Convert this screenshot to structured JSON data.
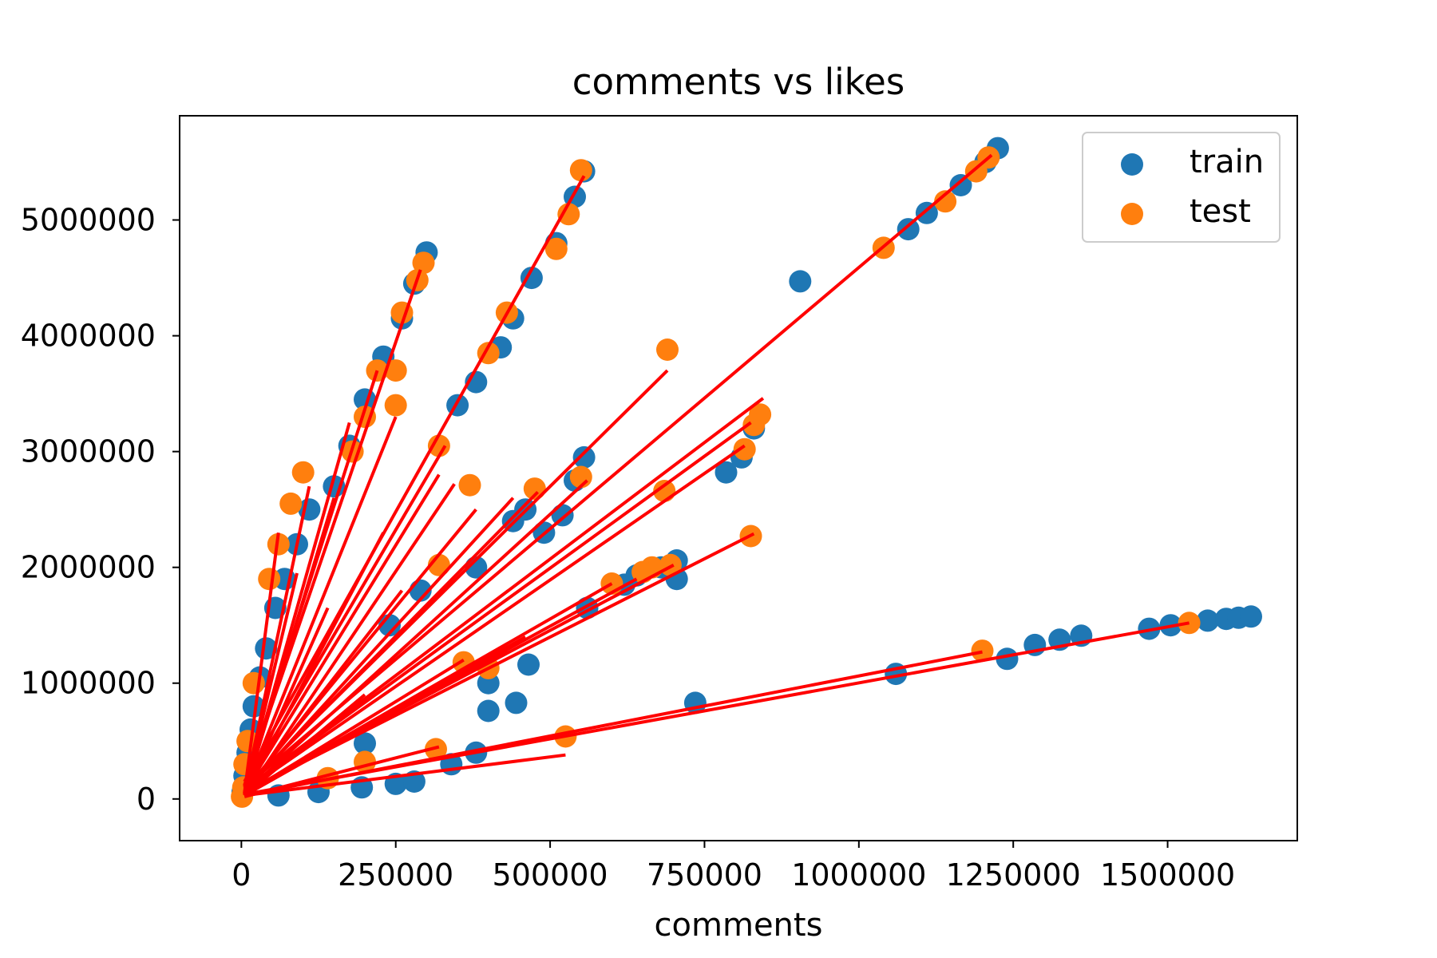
{
  "chart_data": {
    "type": "scatter",
    "title": "comments vs likes",
    "xlabel": "comments",
    "ylabel": "",
    "xlim": [
      -100000,
      1710000
    ],
    "ylim": [
      -360000,
      5900000
    ],
    "grid": false,
    "legend_position": "top-right",
    "x_ticks": [
      0,
      250000,
      500000,
      750000,
      1000000,
      1250000,
      1500000
    ],
    "x_tick_labels": [
      "0",
      "250000",
      "500000",
      "750000",
      "1000000",
      "1250000",
      "1500000"
    ],
    "y_ticks": [
      0,
      1000000,
      2000000,
      3000000,
      4000000,
      5000000
    ],
    "y_tick_labels": [
      "0",
      "1000000",
      "2000000",
      "3000000",
      "4000000",
      "5000000"
    ],
    "colors": {
      "train": "#1f77b4",
      "test": "#ff7f0e",
      "fit_lines": "#ff0000"
    },
    "series": [
      {
        "name": "train",
        "color": "#1f77b4",
        "points": [
          [
            1225000,
            5620000
          ],
          [
            1205000,
            5500000
          ],
          [
            1165000,
            5300000
          ],
          [
            1110000,
            5060000
          ],
          [
            1080000,
            4920000
          ],
          [
            905000,
            4470000
          ],
          [
            300000,
            4720000
          ],
          [
            280000,
            4450000
          ],
          [
            260000,
            4150000
          ],
          [
            230000,
            3820000
          ],
          [
            200000,
            3450000
          ],
          [
            175000,
            3050000
          ],
          [
            150000,
            2700000
          ],
          [
            110000,
            2500000
          ],
          [
            90000,
            2200000
          ],
          [
            70000,
            1900000
          ],
          [
            55000,
            1650000
          ],
          [
            40000,
            1300000
          ],
          [
            30000,
            1050000
          ],
          [
            20000,
            800000
          ],
          [
            15000,
            600000
          ],
          [
            10000,
            400000
          ],
          [
            5000,
            200000
          ],
          [
            2000,
            60000
          ],
          [
            555000,
            5420000
          ],
          [
            540000,
            5200000
          ],
          [
            510000,
            4800000
          ],
          [
            470000,
            4500000
          ],
          [
            440000,
            4150000
          ],
          [
            420000,
            3900000
          ],
          [
            380000,
            3600000
          ],
          [
            350000,
            3400000
          ],
          [
            555000,
            2950000
          ],
          [
            540000,
            2750000
          ],
          [
            440000,
            2400000
          ],
          [
            460000,
            2500000
          ],
          [
            490000,
            2300000
          ],
          [
            520000,
            2450000
          ],
          [
            620000,
            1850000
          ],
          [
            640000,
            1930000
          ],
          [
            680000,
            2000000
          ],
          [
            705000,
            2060000
          ],
          [
            705000,
            1900000
          ],
          [
            560000,
            1650000
          ],
          [
            380000,
            2000000
          ],
          [
            290000,
            1800000
          ],
          [
            240000,
            1500000
          ],
          [
            465000,
            1160000
          ],
          [
            400000,
            1000000
          ],
          [
            400000,
            760000
          ],
          [
            445000,
            830000
          ],
          [
            735000,
            830000
          ],
          [
            785000,
            2820000
          ],
          [
            810000,
            2950000
          ],
          [
            830000,
            3200000
          ],
          [
            1060000,
            1080000
          ],
          [
            1240000,
            1210000
          ],
          [
            1285000,
            1330000
          ],
          [
            1325000,
            1375000
          ],
          [
            1360000,
            1410000
          ],
          [
            1470000,
            1470000
          ],
          [
            1505000,
            1500000
          ],
          [
            1565000,
            1540000
          ],
          [
            1595000,
            1555000
          ],
          [
            1615000,
            1565000
          ],
          [
            1635000,
            1575000
          ],
          [
            380000,
            400000
          ],
          [
            340000,
            300000
          ],
          [
            250000,
            130000
          ],
          [
            280000,
            150000
          ],
          [
            195000,
            100000
          ],
          [
            200000,
            480000
          ],
          [
            125000,
            60000
          ],
          [
            60000,
            30000
          ]
        ]
      },
      {
        "name": "test",
        "color": "#ff7f0e",
        "points": [
          [
            1210000,
            5540000
          ],
          [
            1190000,
            5420000
          ],
          [
            1140000,
            5160000
          ],
          [
            1040000,
            4760000
          ],
          [
            690000,
            3880000
          ],
          [
            840000,
            3320000
          ],
          [
            830000,
            3230000
          ],
          [
            815000,
            3020000
          ],
          [
            825000,
            2270000
          ],
          [
            685000,
            2660000
          ],
          [
            695000,
            2020000
          ],
          [
            665000,
            2000000
          ],
          [
            650000,
            1960000
          ],
          [
            600000,
            1860000
          ],
          [
            550000,
            2780000
          ],
          [
            475000,
            2680000
          ],
          [
            370000,
            2710000
          ],
          [
            320000,
            3050000
          ],
          [
            550000,
            5430000
          ],
          [
            530000,
            5050000
          ],
          [
            510000,
            4750000
          ],
          [
            430000,
            4200000
          ],
          [
            400000,
            3850000
          ],
          [
            295000,
            4630000
          ],
          [
            285000,
            4480000
          ],
          [
            260000,
            4200000
          ],
          [
            250000,
            3700000
          ],
          [
            220000,
            3700000
          ],
          [
            200000,
            3300000
          ],
          [
            180000,
            3000000
          ],
          [
            250000,
            3400000
          ],
          [
            100000,
            2820000
          ],
          [
            80000,
            2550000
          ],
          [
            60000,
            2200000
          ],
          [
            45000,
            1900000
          ],
          [
            320000,
            2020000
          ],
          [
            360000,
            1180000
          ],
          [
            400000,
            1130000
          ],
          [
            1200000,
            1280000
          ],
          [
            1535000,
            1520000
          ],
          [
            525000,
            540000
          ],
          [
            315000,
            430000
          ],
          [
            200000,
            320000
          ],
          [
            140000,
            180000
          ],
          [
            20000,
            1000000
          ],
          [
            10000,
            500000
          ],
          [
            5000,
            300000
          ],
          [
            3000,
            100000
          ],
          [
            1000,
            20000
          ]
        ]
      }
    ],
    "fit_lines": [
      [
        5000,
        100000,
        1215000,
        5560000
      ],
      [
        5000,
        150000,
        555000,
        5380000
      ],
      [
        5000,
        120000,
        290000,
        4570000
      ],
      [
        5000,
        110000,
        220000,
        3700000
      ],
      [
        5000,
        100000,
        330000,
        3050000
      ],
      [
        5000,
        90000,
        690000,
        3700000
      ],
      [
        5000,
        80000,
        845000,
        3460000
      ],
      [
        5000,
        80000,
        825000,
        3250000
      ],
      [
        5000,
        70000,
        815000,
        3050000
      ],
      [
        5000,
        60000,
        830000,
        2290000
      ],
      [
        5000,
        60000,
        700000,
        2020000
      ],
      [
        5000,
        50000,
        640000,
        1900000
      ],
      [
        5000,
        40000,
        1535000,
        1520000
      ],
      [
        5000,
        30000,
        1200000,
        1270000
      ],
      [
        5000,
        30000,
        525000,
        380000
      ],
      [
        10000,
        60000,
        345000,
        2720000
      ],
      [
        5000,
        70000,
        380000,
        2500000
      ],
      [
        5000,
        80000,
        480000,
        2650000
      ],
      [
        5000,
        50000,
        110000,
        2700000
      ],
      [
        5000,
        50000,
        60000,
        2300000
      ],
      [
        5000,
        40000,
        175000,
        3250000
      ],
      [
        5000,
        60000,
        250000,
        3300000
      ],
      [
        5000,
        60000,
        320000,
        2800000
      ],
      [
        5000,
        60000,
        440000,
        2600000
      ],
      [
        5000,
        50000,
        560000,
        2750000
      ],
      [
        5000,
        40000,
        360000,
        1200000
      ],
      [
        5000,
        40000,
        600000,
        1860000
      ],
      [
        5000,
        30000,
        460000,
        1400000
      ],
      [
        5000,
        30000,
        200000,
        900000
      ],
      [
        5000,
        20000,
        320000,
        450000
      ],
      [
        5000,
        30000,
        140000,
        1650000
      ],
      [
        5000,
        40000,
        90000,
        1950000
      ],
      [
        5000,
        50000,
        260000,
        1800000
      ],
      [
        5000,
        40000,
        230000,
        2300000
      ],
      [
        5000,
        40000,
        150000,
        2600000
      ]
    ]
  }
}
